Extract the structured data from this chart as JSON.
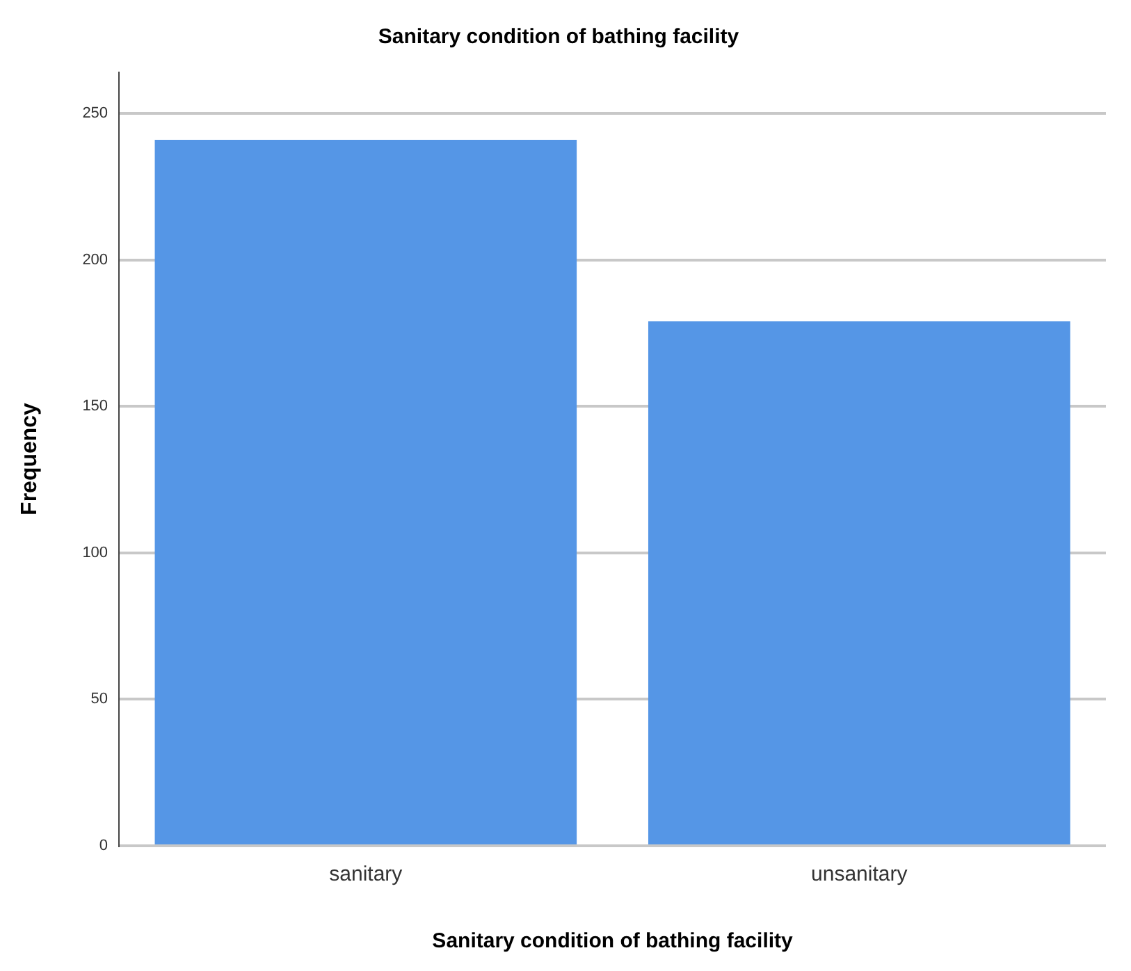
{
  "chart_data": {
    "type": "bar",
    "title": "Sanitary condition of bathing facility",
    "xlabel": "Sanitary condition of bathing facility",
    "ylabel": "Frequency",
    "categories": [
      "sanitary",
      "unsanitary"
    ],
    "values": [
      241,
      179
    ],
    "color": "#5596e6",
    "ylim": [
      0,
      264
    ],
    "yticks": [
      0,
      50,
      100,
      150,
      200,
      250
    ],
    "grid": "y",
    "legend": false
  }
}
